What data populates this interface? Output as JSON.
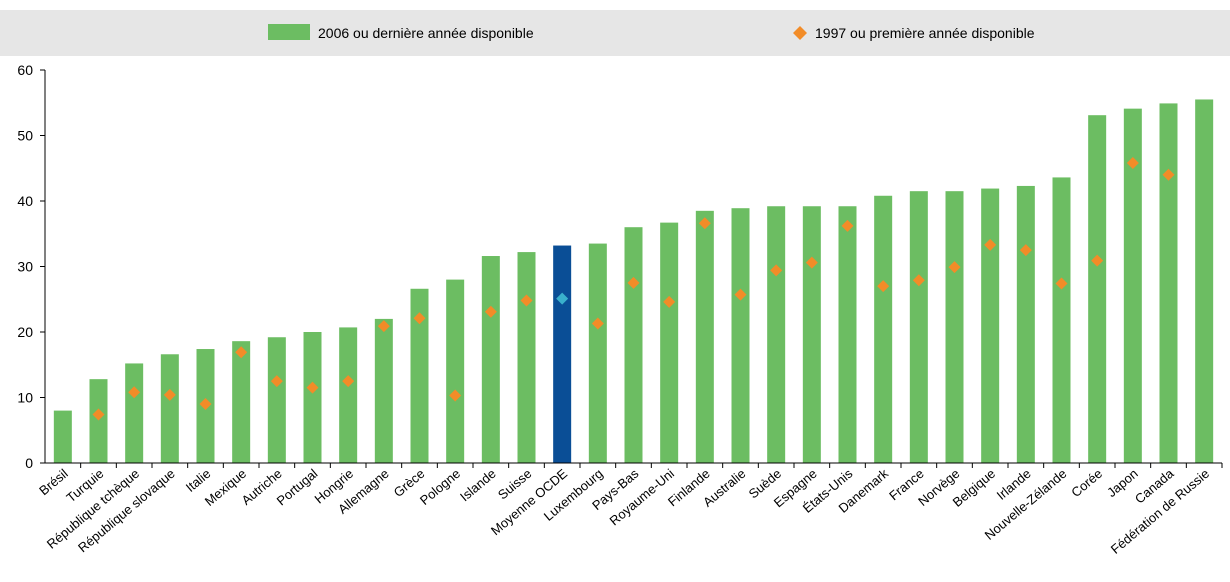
{
  "chart_data": {
    "type": "bar",
    "categories": [
      "Brésil",
      "Turquie",
      "République tchèque",
      "République slovaque",
      "Italie",
      "Mexique",
      "Autriche",
      "Portugal",
      "Hongrie",
      "Allemagne",
      "Grèce",
      "Pologne",
      "Islande",
      "Suisse",
      "Moyenne OCDE",
      "Luxembourg",
      "Pays-Bas",
      "Royaume-Uni",
      "Finlande",
      "Australie",
      "Suède",
      "Espagne",
      "États-Unis",
      "Danemark",
      "France",
      "Norvège",
      "Belgique",
      "Irlande",
      "Nouvelle-Zélande",
      "Corée",
      "Japon",
      "Canada",
      "Fédération de Russie"
    ],
    "series": [
      {
        "name": "2006 ou dernière année disponible",
        "marker": "bar",
        "color": "#6cbd62",
        "highlight_color": "#0a4e96",
        "values": [
          8.0,
          12.8,
          15.2,
          16.6,
          17.4,
          18.6,
          19.2,
          20.0,
          20.7,
          22.0,
          26.6,
          28.0,
          31.6,
          32.2,
          33.2,
          33.5,
          36.0,
          36.7,
          38.5,
          38.9,
          39.2,
          39.2,
          39.2,
          40.8,
          41.5,
          41.5,
          41.9,
          42.3,
          43.6,
          53.1,
          54.1,
          54.9,
          55.5
        ]
      },
      {
        "name": "1997 ou première année disponible",
        "marker": "diamond",
        "color": "#f28c28",
        "highlight_color": "#3ab0cc",
        "values": [
          null,
          7.4,
          10.8,
          10.4,
          9.0,
          16.9,
          12.5,
          11.5,
          12.5,
          20.9,
          22.1,
          10.3,
          23.1,
          24.8,
          25.1,
          21.3,
          27.5,
          24.6,
          36.6,
          25.7,
          29.4,
          30.6,
          36.2,
          27.0,
          27.9,
          29.9,
          33.3,
          32.5,
          27.4,
          30.9,
          45.8,
          44.0,
          null
        ]
      }
    ],
    "highlight_category": "Moyenne OCDE",
    "ylim": [
      0,
      60
    ],
    "yticks": [
      0,
      10,
      20,
      30,
      40,
      50,
      60
    ],
    "xlabel": "",
    "ylabel": "",
    "grid": false,
    "legend_position": "top",
    "legend_background": "#e6e6e6"
  }
}
